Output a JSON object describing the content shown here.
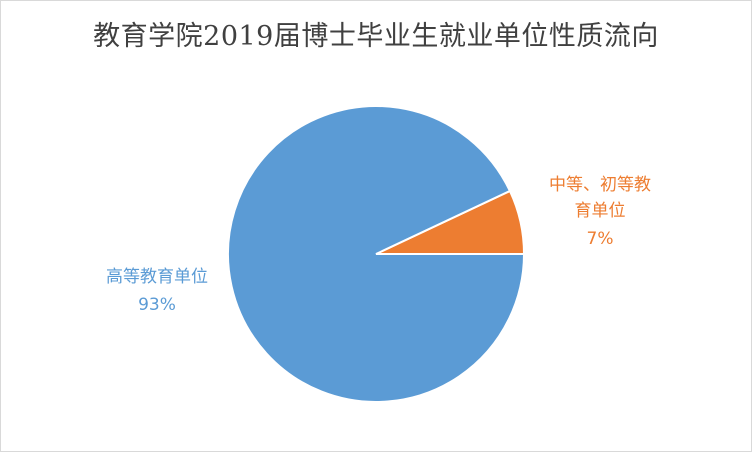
{
  "chart_data": {
    "type": "pie",
    "title": "教育学院2019届博士毕业生就业单位性质流向",
    "slices": [
      {
        "label": "中等、初等教育单位",
        "value": 7,
        "display": "7%",
        "color": "#ED7D31"
      },
      {
        "label": "高等教育单位",
        "value": 93,
        "display": "93%",
        "color": "#5B9BD5"
      }
    ]
  }
}
